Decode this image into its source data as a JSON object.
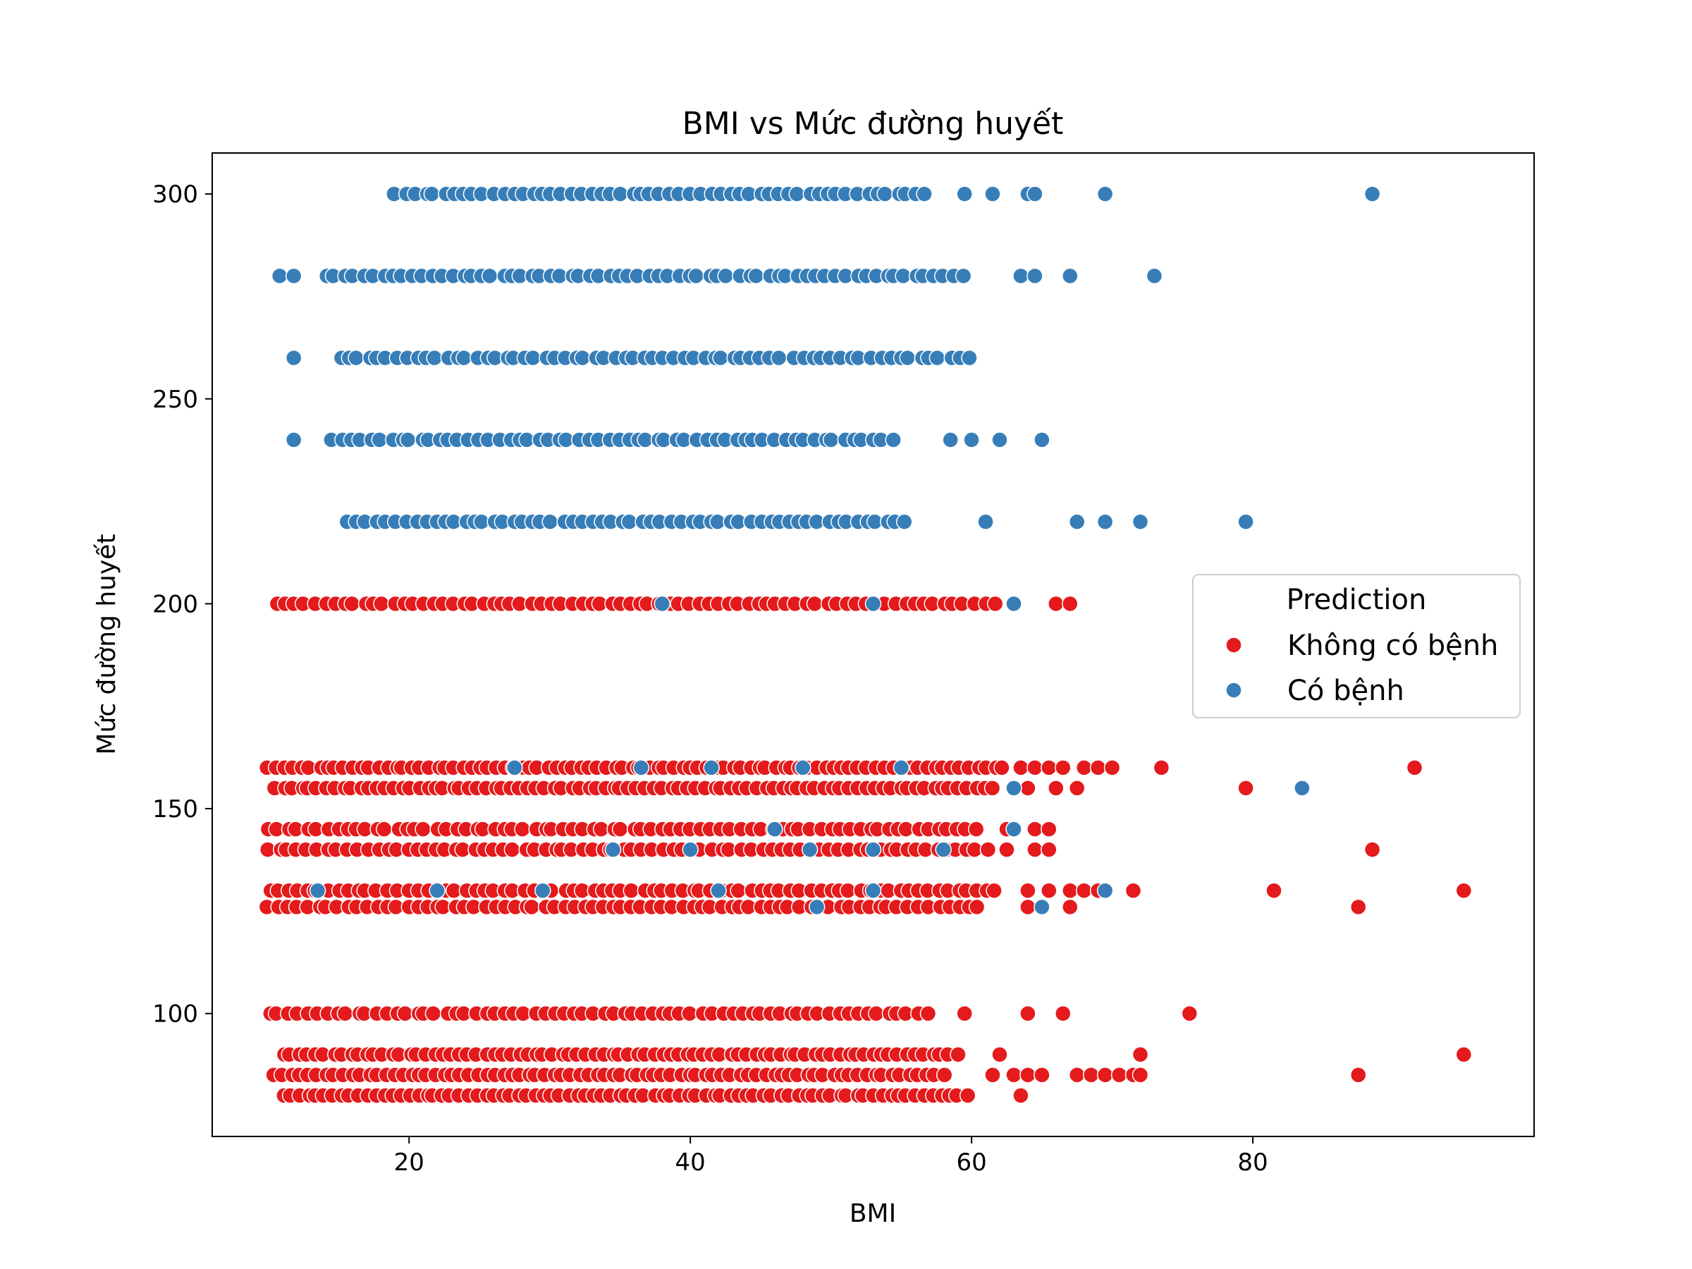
{
  "chart_data": {
    "type": "scatter",
    "title": "BMI vs Mức đường huyết",
    "xlabel": "BMI",
    "ylabel": "Mức đường huyết",
    "xlim": [
      6,
      100
    ],
    "ylim": [
      70,
      310
    ],
    "xticks": [
      20,
      40,
      60,
      80
    ],
    "yticks": [
      100,
      150,
      200,
      250,
      300
    ],
    "grid": false,
    "legend": {
      "title": "Prediction",
      "placement": "center-right"
    },
    "series": [
      {
        "name": "Không có bệnh",
        "color": "#e41a1c",
        "rows": [
          {
            "y": 200,
            "x_from": 10.5,
            "x_to": 62,
            "step": 0.7,
            "extra": [
              63,
              66,
              67
            ]
          },
          {
            "y": 160,
            "x_from": 10,
            "x_to": 62.5,
            "step": 0.6,
            "extra": [
              63.5,
              64.5,
              65.5,
              66.5,
              68,
              69,
              70,
              73.5,
              91.5
            ]
          },
          {
            "y": 155,
            "x_from": 10.5,
            "x_to": 62,
            "step": 0.6,
            "extra": [
              63,
              64,
              66,
              67.5,
              79.5
            ]
          },
          {
            "y": 145,
            "x_from": 10,
            "x_to": 61,
            "step": 0.7,
            "extra": [
              62.5,
              64.5,
              65.5
            ]
          },
          {
            "y": 140,
            "x_from": 10,
            "x_to": 61.5,
            "step": 0.7,
            "extra": [
              62.5,
              64.5,
              65.5,
              88.5
            ]
          },
          {
            "y": 130,
            "x_from": 10,
            "x_to": 62,
            "step": 0.7,
            "extra": [
              64,
              65.5,
              67,
              68,
              69,
              71.5,
              81.5,
              95
            ]
          },
          {
            "y": 126,
            "x_from": 10,
            "x_to": 61,
            "step": 0.7,
            "extra": [
              64,
              67,
              87.5
            ]
          },
          {
            "y": 100,
            "x_from": 10,
            "x_to": 57.5,
            "step": 0.7,
            "extra": [
              59.5,
              64,
              66.5,
              75.5
            ]
          },
          {
            "y": 90,
            "x_from": 11,
            "x_to": 59.5,
            "step": 0.6,
            "extra": [
              62,
              72,
              95
            ]
          },
          {
            "y": 85,
            "x_from": 10.5,
            "x_to": 58,
            "step": 0.6,
            "extra": [
              61.5,
              63,
              64,
              65,
              67.5,
              68.5,
              69.5,
              70.5,
              71.5,
              72,
              87.5
            ]
          },
          {
            "y": 80,
            "x_from": 11,
            "x_to": 60,
            "step": 0.6,
            "extra": [
              63.5
            ]
          }
        ]
      },
      {
        "name": "Có bệnh",
        "color": "#377eb8",
        "rows": [
          {
            "y": 300,
            "x_from": 19,
            "x_to": 57,
            "step": 0.7,
            "extra": [
              59.5,
              61.5,
              64,
              64.5,
              69.5,
              88.5
            ]
          },
          {
            "y": 280,
            "x_from": 14,
            "x_to": 60,
            "step": 0.7,
            "extra": [
              10.8,
              11.8,
              63.5,
              64.5,
              67,
              73
            ]
          },
          {
            "y": 260,
            "x_from": 15,
            "x_to": 60,
            "step": 0.7,
            "extra": [
              11.8
            ]
          },
          {
            "y": 240,
            "x_from": 14.5,
            "x_to": 55,
            "step": 0.7,
            "extra": [
              11.8,
              58.5,
              60,
              62,
              65
            ]
          },
          {
            "y": 220,
            "x_from": 15.5,
            "x_to": 56,
            "step": 0.7,
            "extra": [
              61,
              67.5,
              69.5,
              72,
              79.5
            ]
          },
          {
            "y": 200,
            "x_from": 38,
            "x_to": 38,
            "step": 1,
            "extra": [
              53,
              63
            ]
          },
          {
            "y": 160,
            "x_from": 27.5,
            "x_to": 27.5,
            "step": 1,
            "extra": [
              36.5,
              41.5,
              48,
              55
            ]
          },
          {
            "y": 155,
            "x_from": 63,
            "x_to": 63,
            "step": 1,
            "extra": [
              83.5
            ]
          },
          {
            "y": 145,
            "x_from": 46,
            "x_to": 46,
            "step": 1,
            "extra": [
              63
            ]
          },
          {
            "y": 140,
            "x_from": 34.5,
            "x_to": 34.5,
            "step": 1,
            "extra": [
              40,
              48.5,
              53,
              58
            ]
          },
          {
            "y": 130,
            "x_from": 13.5,
            "x_to": 13.5,
            "step": 1,
            "extra": [
              22,
              29.5,
              42,
              53,
              69.5
            ]
          },
          {
            "y": 126,
            "x_from": 49,
            "x_to": 49,
            "step": 1,
            "extra": [
              65
            ]
          }
        ]
      }
    ]
  }
}
